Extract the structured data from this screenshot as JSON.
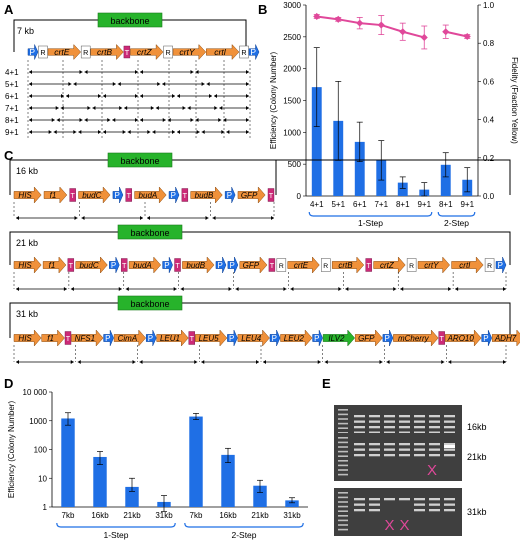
{
  "panels": {
    "a": "A",
    "b": "B",
    "c": "C",
    "d": "D",
    "e": "E"
  },
  "colors": {
    "orange": "#f0913a",
    "blue": "#1f6fe5",
    "magenta": "#cc2a77",
    "green": "#27b32b",
    "pink": "#e0489a",
    "gel": "#3f3f3f"
  },
  "panel_a": {
    "backbone": "backbone",
    "size": "7 kb",
    "parts": [
      {
        "t": "P",
        "c": "blue"
      },
      {
        "t": "R",
        "c": "white"
      },
      {
        "t": "crtE",
        "c": "orange"
      },
      {
        "t": "R",
        "c": "white"
      },
      {
        "t": "crtB",
        "c": "orange"
      },
      {
        "t": "T",
        "c": "magenta"
      },
      {
        "t": "crtZ",
        "c": "orange"
      },
      {
        "t": "R",
        "c": "white"
      },
      {
        "t": "crtY",
        "c": "orange"
      },
      {
        "t": "crtI",
        "c": "orange"
      },
      {
        "t": "R",
        "c": "white"
      },
      {
        "t": "P",
        "c": "blue"
      }
    ],
    "rows": [
      "4+1",
      "5+1",
      "6+1",
      "7+1",
      "8+1",
      "9+1"
    ]
  },
  "panel_c": {
    "backbone": "backbone",
    "constructs": [
      {
        "size": "16 kb",
        "parts": [
          {
            "t": "HIS",
            "c": "orange"
          },
          {
            "t": "f1",
            "c": "orange"
          },
          {
            "t": "T",
            "c": "magenta"
          },
          {
            "t": "budC",
            "c": "orange"
          },
          {
            "t": "P",
            "c": "blue"
          },
          {
            "t": "T",
            "c": "magenta"
          },
          {
            "t": "budA",
            "c": "orange"
          },
          {
            "t": "P",
            "c": "blue"
          },
          {
            "t": "T",
            "c": "magenta"
          },
          {
            "t": "budB",
            "c": "orange"
          },
          {
            "t": "P",
            "c": "blue"
          },
          {
            "t": "GFP",
            "c": "orange"
          },
          {
            "t": "T",
            "c": "magenta"
          }
        ]
      },
      {
        "size": "21 kb",
        "parts": [
          {
            "t": "HIS",
            "c": "orange"
          },
          {
            "t": "f1",
            "c": "orange"
          },
          {
            "t": "T",
            "c": "magenta"
          },
          {
            "t": "budC",
            "c": "orange"
          },
          {
            "t": "P",
            "c": "blue"
          },
          {
            "t": "T",
            "c": "magenta"
          },
          {
            "t": "budA",
            "c": "orange"
          },
          {
            "t": "P",
            "c": "blue"
          },
          {
            "t": "T",
            "c": "magenta"
          },
          {
            "t": "budB",
            "c": "orange"
          },
          {
            "t": "P",
            "c": "blue"
          },
          {
            "t": "P",
            "c": "blue"
          },
          {
            "t": "GFP",
            "c": "orange"
          },
          {
            "t": "T",
            "c": "magenta"
          },
          {
            "t": "R",
            "c": "white"
          },
          {
            "t": "crtE",
            "c": "orange"
          },
          {
            "t": "R",
            "c": "white"
          },
          {
            "t": "crtB",
            "c": "orange"
          },
          {
            "t": "T",
            "c": "magenta"
          },
          {
            "t": "crtZ",
            "c": "orange"
          },
          {
            "t": "R",
            "c": "white"
          },
          {
            "t": "crtY",
            "c": "orange"
          },
          {
            "t": "crtI",
            "c": "orange"
          },
          {
            "t": "R",
            "c": "white"
          },
          {
            "t": "P",
            "c": "blue"
          }
        ]
      },
      {
        "size": "31 kb",
        "parts": [
          {
            "t": "HIS",
            "c": "orange"
          },
          {
            "t": "f1",
            "c": "orange"
          },
          {
            "t": "T",
            "c": "magenta"
          },
          {
            "t": "NFS1",
            "c": "orange"
          },
          {
            "t": "P",
            "c": "blue"
          },
          {
            "t": "CimA",
            "c": "orange"
          },
          {
            "t": "P",
            "c": "blue"
          },
          {
            "t": "LEU1",
            "c": "orange"
          },
          {
            "t": "T",
            "c": "magenta"
          },
          {
            "t": "LEU5",
            "c": "orange"
          },
          {
            "t": "P",
            "c": "blue"
          },
          {
            "t": "LEU4",
            "c": "orange"
          },
          {
            "t": "P",
            "c": "blue"
          },
          {
            "t": "LEU2",
            "c": "orange"
          },
          {
            "t": "P",
            "c": "blue"
          },
          {
            "t": "ILV2",
            "c": "green"
          },
          {
            "t": "GFP",
            "c": "orange"
          },
          {
            "t": "P",
            "c": "blue"
          },
          {
            "t": "mCherry",
            "c": "orange"
          },
          {
            "t": "T",
            "c": "magenta"
          },
          {
            "t": "ARO10",
            "c": "orange"
          },
          {
            "t": "P",
            "c": "blue"
          },
          {
            "t": "ADH7",
            "c": "orange"
          },
          {
            "t": "P",
            "c": "blue"
          }
        ]
      }
    ]
  },
  "chart_data": [
    {
      "type": "bar",
      "panel": "B",
      "categories": [
        "4+1",
        "5+1",
        "6+1",
        "7+1",
        "8+1",
        "9+1",
        "8+1",
        "9+1"
      ],
      "series": [
        {
          "name": "Efficiency (Colony Number)",
          "values": [
            1710,
            1180,
            850,
            560,
            210,
            100,
            490,
            255
          ],
          "error": [
            620,
            620,
            310,
            310,
            90,
            110,
            190,
            190
          ]
        },
        {
          "name": "Fidelity (Fraction Yellow)",
          "type": "line",
          "values": [
            0.94,
            0.925,
            0.905,
            0.895,
            0.86,
            0.83,
            0.86,
            0.835
          ],
          "error": [
            0.01,
            0.01,
            0.03,
            0.05,
            0.045,
            0.06,
            0.035,
            0.01
          ],
          "segments": [
            [
              0,
              5
            ],
            [
              6,
              7
            ]
          ]
        }
      ],
      "ylabel": "Efficiency (Colony Number)",
      "y2label": "Fidelity (Fraction Yellow)",
      "ylim": [
        0,
        3000
      ],
      "y2lim": [
        0,
        1.0
      ],
      "yticks": [
        "0",
        "500",
        "1000",
        "1500",
        "2000",
        "2500",
        "3000"
      ],
      "y2ticks": [
        "0.0",
        "0.2",
        "0.4",
        "0.6",
        "0.8",
        "1.0"
      ],
      "groups": [
        {
          "label": "1-Step",
          "from": 0,
          "to": 5
        },
        {
          "label": "2-Step",
          "from": 6,
          "to": 7
        }
      ]
    },
    {
      "type": "bar",
      "panel": "D",
      "scale": "log",
      "categories": [
        "7kb",
        "16kb",
        "21kb",
        "31kb",
        "7kb",
        "16kb",
        "21kb",
        "31kb"
      ],
      "series": [
        {
          "name": "Efficiency (Colony Number)",
          "values": [
            1200,
            55,
            5,
            1.5,
            1400,
            65,
            5.5,
            1.7
          ],
          "err_lo": [
            700,
            30,
            3.5,
            0.7,
            1100,
            35,
            3.2,
            1.4
          ],
          "err_hi": [
            1900,
            85,
            10,
            2.5,
            1800,
            110,
            8.5,
            2.1
          ]
        }
      ],
      "ylabel": "Efficiency (Colony Number)",
      "ylim": [
        1,
        10000
      ],
      "yticks": [
        "1",
        "10",
        "100",
        "1000",
        "10 000"
      ],
      "groups": [
        {
          "label": "1-Step",
          "from": 0,
          "to": 3
        },
        {
          "label": "2-Step",
          "from": 4,
          "to": 7
        }
      ]
    }
  ],
  "panel_e": {
    "rows": [
      {
        "label": "16kb"
      },
      {
        "label": "21kb",
        "x_lanes": [
          6
        ]
      },
      {
        "label": "31kb",
        "x_lanes": [
          3,
          4
        ]
      }
    ],
    "mark": "X"
  }
}
